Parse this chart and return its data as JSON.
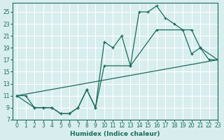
{
  "bg_color": "#d8eeee",
  "line_color": "#1a6b5a",
  "grid_color": "#ffffff",
  "xlabel": "Humidex (Indice chaleur)",
  "xlim": [
    -0.5,
    23
  ],
  "ylim": [
    7,
    26.5
  ],
  "xticks": [
    0,
    1,
    2,
    3,
    4,
    5,
    6,
    7,
    8,
    9,
    10,
    11,
    12,
    13,
    14,
    15,
    16,
    17,
    18,
    19,
    20,
    21,
    22,
    23
  ],
  "yticks": [
    7,
    9,
    11,
    13,
    15,
    17,
    19,
    21,
    23,
    25
  ],
  "curve1_x": [
    0,
    1,
    2,
    3,
    4,
    5,
    6,
    7,
    8,
    9,
    10,
    11,
    12,
    13,
    14,
    15,
    16,
    17,
    18,
    19,
    20,
    21,
    22,
    23
  ],
  "curve1_y": [
    11,
    11,
    9,
    9,
    9,
    8,
    8,
    9,
    12,
    9,
    20,
    19,
    21,
    16,
    25,
    25,
    26,
    24,
    23,
    22,
    18,
    19,
    17,
    17
  ],
  "curve2_x": [
    0,
    2,
    3,
    4,
    5,
    6,
    7,
    8,
    9,
    10,
    13,
    16,
    20,
    21,
    23
  ],
  "curve2_y": [
    11,
    9,
    9,
    9,
    8,
    8,
    9,
    12,
    9,
    16,
    16,
    22,
    22,
    19,
    17
  ],
  "line3_x": [
    0,
    23
  ],
  "line3_y": [
    11,
    17
  ]
}
